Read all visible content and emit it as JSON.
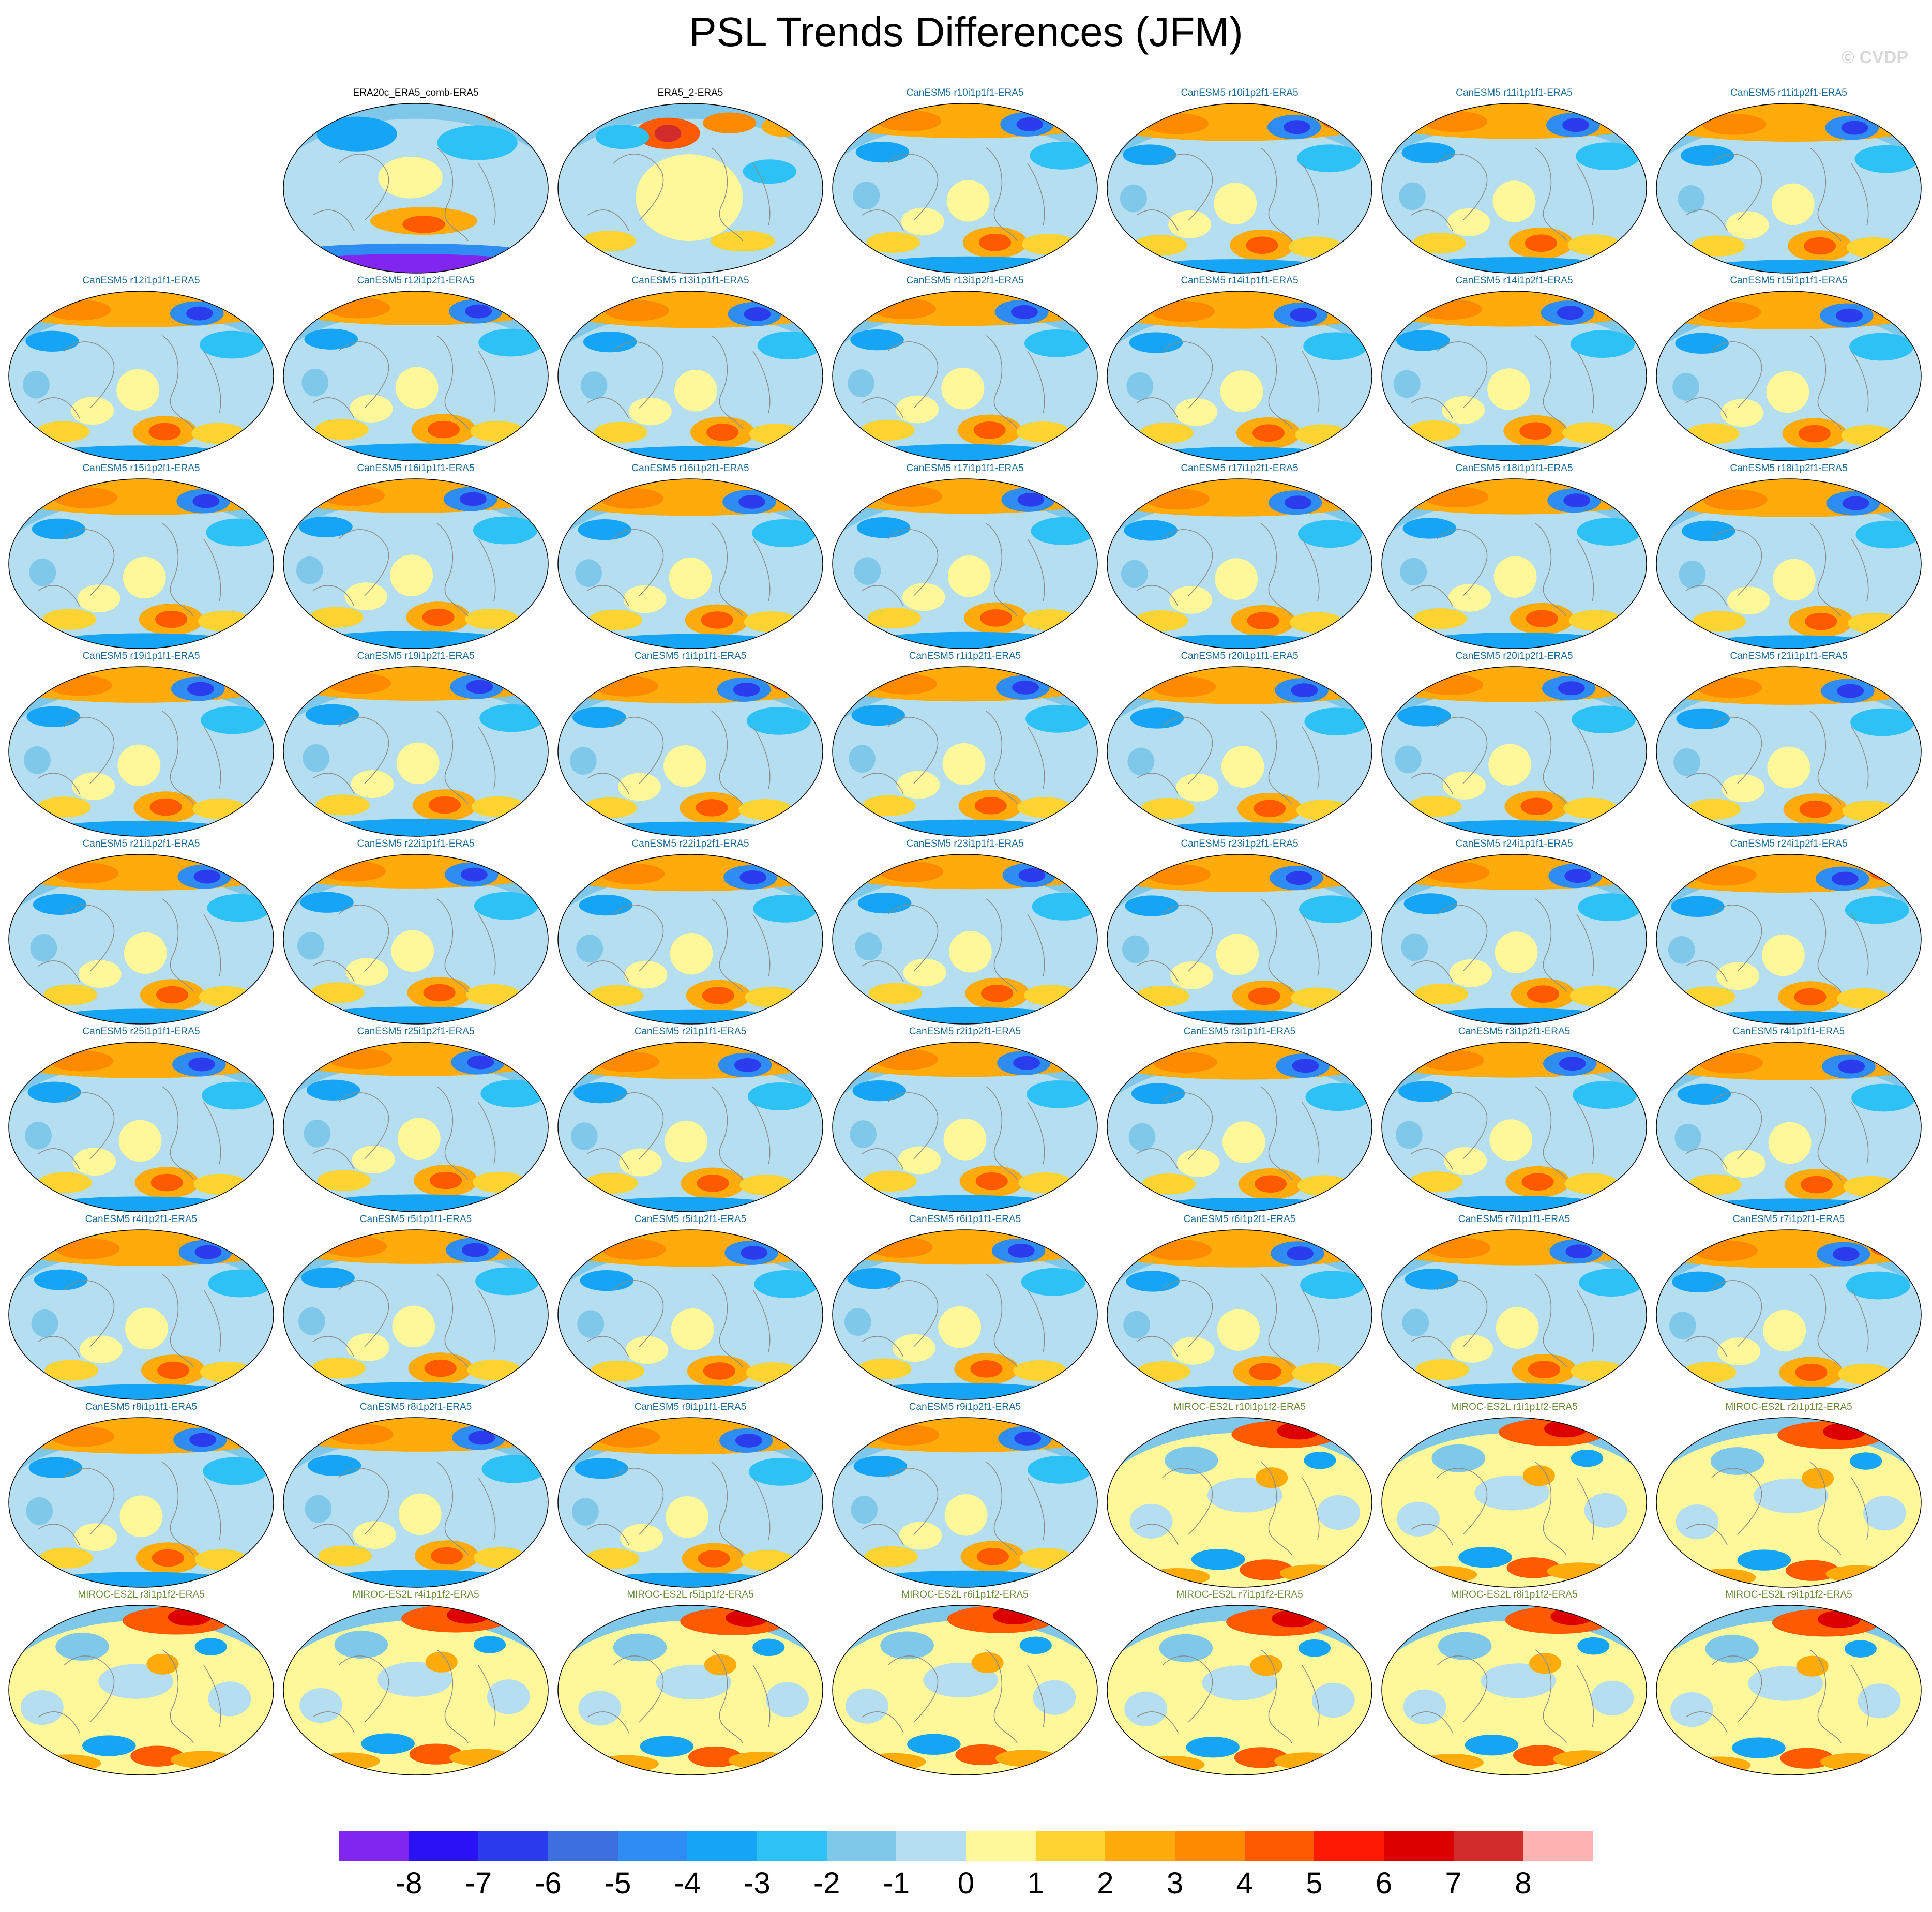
{
  "title": "PSL Trends Differences (JFM)",
  "watermark": "© CVDP",
  "colorbar": {
    "levels": [
      "-8",
      "-7",
      "-6",
      "-5",
      "-4",
      "-3",
      "-2",
      "-1",
      "0",
      "1",
      "2",
      "3",
      "4",
      "5",
      "6",
      "7",
      "8"
    ],
    "colors": [
      "#8026ef",
      "#2a12f5",
      "#2a3ceb",
      "#3d6fdf",
      "#2f8cf2",
      "#16a5f6",
      "#2ec1f5",
      "#80c8ea",
      "#b5def1",
      "#fef89a",
      "#fed432",
      "#feab0b",
      "#fe8a02",
      "#fe5a02",
      "#fe1902",
      "#dd0000",
      "#d12b2b",
      "#feb3b3"
    ]
  },
  "panels": [
    {
      "label": "ERA20c_ERA5_comb-ERA5",
      "color": "#000000",
      "style": "era20c"
    },
    {
      "label": "ERA5_2-ERA5",
      "color": "#000000",
      "style": "era5"
    },
    {
      "label": "CanESM5 r10i1p1f1-ERA5",
      "color": "#1b6b96",
      "style": "can"
    },
    {
      "label": "CanESM5 r10i1p2f1-ERA5",
      "color": "#1b6b96",
      "style": "can"
    },
    {
      "label": "CanESM5 r11i1p1f1-ERA5",
      "color": "#1b6b96",
      "style": "can"
    },
    {
      "label": "CanESM5 r11i1p2f1-ERA5",
      "color": "#1b6b96",
      "style": "can"
    },
    {
      "label": "CanESM5 r12i1p1f1-ERA5",
      "color": "#1b6b96",
      "style": "can"
    },
    {
      "label": "CanESM5 r12i1p2f1-ERA5",
      "color": "#1b6b96",
      "style": "can"
    },
    {
      "label": "CanESM5 r13i1p1f1-ERA5",
      "color": "#1b6b96",
      "style": "can"
    },
    {
      "label": "CanESM5 r13i1p2f1-ERA5",
      "color": "#1b6b96",
      "style": "can"
    },
    {
      "label": "CanESM5 r14i1p1f1-ERA5",
      "color": "#1b6b96",
      "style": "can"
    },
    {
      "label": "CanESM5 r14i1p2f1-ERA5",
      "color": "#1b6b96",
      "style": "can"
    },
    {
      "label": "CanESM5 r15i1p1f1-ERA5",
      "color": "#1b6b96",
      "style": "can"
    },
    {
      "label": "CanESM5 r15i1p2f1-ERA5",
      "color": "#1b6b96",
      "style": "can"
    },
    {
      "label": "CanESM5 r16i1p1f1-ERA5",
      "color": "#1b6b96",
      "style": "can"
    },
    {
      "label": "CanESM5 r16i1p2f1-ERA5",
      "color": "#1b6b96",
      "style": "can"
    },
    {
      "label": "CanESM5 r17i1p1f1-ERA5",
      "color": "#1b6b96",
      "style": "can"
    },
    {
      "label": "CanESM5 r17i1p2f1-ERA5",
      "color": "#1b6b96",
      "style": "can"
    },
    {
      "label": "CanESM5 r18i1p1f1-ERA5",
      "color": "#1b6b96",
      "style": "can"
    },
    {
      "label": "CanESM5 r18i1p2f1-ERA5",
      "color": "#1b6b96",
      "style": "can"
    },
    {
      "label": "CanESM5 r19i1p1f1-ERA5",
      "color": "#1b6b96",
      "style": "can"
    },
    {
      "label": "CanESM5 r19i1p2f1-ERA5",
      "color": "#1b6b96",
      "style": "can"
    },
    {
      "label": "CanESM5 r1i1p1f1-ERA5",
      "color": "#1b6b96",
      "style": "can"
    },
    {
      "label": "CanESM5 r1i1p2f1-ERA5",
      "color": "#1b6b96",
      "style": "can"
    },
    {
      "label": "CanESM5 r20i1p1f1-ERA5",
      "color": "#1b6b96",
      "style": "can"
    },
    {
      "label": "CanESM5 r20i1p2f1-ERA5",
      "color": "#1b6b96",
      "style": "can"
    },
    {
      "label": "CanESM5 r21i1p1f1-ERA5",
      "color": "#1b6b96",
      "style": "can"
    },
    {
      "label": "CanESM5 r21i1p2f1-ERA5",
      "color": "#1b6b96",
      "style": "can"
    },
    {
      "label": "CanESM5 r22i1p1f1-ERA5",
      "color": "#1b6b96",
      "style": "can"
    },
    {
      "label": "CanESM5 r22i1p2f1-ERA5",
      "color": "#1b6b96",
      "style": "can"
    },
    {
      "label": "CanESM5 r23i1p1f1-ERA5",
      "color": "#1b6b96",
      "style": "can"
    },
    {
      "label": "CanESM5 r23i1p2f1-ERA5",
      "color": "#1b6b96",
      "style": "can"
    },
    {
      "label": "CanESM5 r24i1p1f1-ERA5",
      "color": "#1b6b96",
      "style": "can"
    },
    {
      "label": "CanESM5 r24i1p2f1-ERA5",
      "color": "#1b6b96",
      "style": "can"
    },
    {
      "label": "CanESM5 r25i1p1f1-ERA5",
      "color": "#1b6b96",
      "style": "can"
    },
    {
      "label": "CanESM5 r25i1p2f1-ERA5",
      "color": "#1b6b96",
      "style": "can"
    },
    {
      "label": "CanESM5 r2i1p1f1-ERA5",
      "color": "#1b6b96",
      "style": "can"
    },
    {
      "label": "CanESM5 r2i1p2f1-ERA5",
      "color": "#1b6b96",
      "style": "can"
    },
    {
      "label": "CanESM5 r3i1p1f1-ERA5",
      "color": "#1b6b96",
      "style": "can"
    },
    {
      "label": "CanESM5 r3i1p2f1-ERA5",
      "color": "#1b6b96",
      "style": "can"
    },
    {
      "label": "CanESM5 r4i1p1f1-ERA5",
      "color": "#1b6b96",
      "style": "can"
    },
    {
      "label": "CanESM5 r4i1p2f1-ERA5",
      "color": "#1b6b96",
      "style": "can"
    },
    {
      "label": "CanESM5 r5i1p1f1-ERA5",
      "color": "#1b6b96",
      "style": "can"
    },
    {
      "label": "CanESM5 r5i1p2f1-ERA5",
      "color": "#1b6b96",
      "style": "can"
    },
    {
      "label": "CanESM5 r6i1p1f1-ERA5",
      "color": "#1b6b96",
      "style": "can"
    },
    {
      "label": "CanESM5 r6i1p2f1-ERA5",
      "color": "#1b6b96",
      "style": "can"
    },
    {
      "label": "CanESM5 r7i1p1f1-ERA5",
      "color": "#1b6b96",
      "style": "can"
    },
    {
      "label": "CanESM5 r7i1p2f1-ERA5",
      "color": "#1b6b96",
      "style": "can"
    },
    {
      "label": "CanESM5 r8i1p1f1-ERA5",
      "color": "#1b6b96",
      "style": "can"
    },
    {
      "label": "CanESM5 r8i1p2f1-ERA5",
      "color": "#1b6b96",
      "style": "can"
    },
    {
      "label": "CanESM5 r9i1p1f1-ERA5",
      "color": "#1b6b96",
      "style": "can"
    },
    {
      "label": "CanESM5 r9i1p2f1-ERA5",
      "color": "#1b6b96",
      "style": "can"
    },
    {
      "label": "MIROC-ES2L r10i1p1f2-ERA5",
      "color": "#6b8a3a",
      "style": "miroc"
    },
    {
      "label": "MIROC-ES2L r1i1p1f2-ERA5",
      "color": "#6b8a3a",
      "style": "miroc"
    },
    {
      "label": "MIROC-ES2L r2i1p1f2-ERA5",
      "color": "#6b8a3a",
      "style": "miroc"
    },
    {
      "label": "MIROC-ES2L r3i1p1f2-ERA5",
      "color": "#6b8a3a",
      "style": "miroc"
    },
    {
      "label": "MIROC-ES2L r4i1p1f2-ERA5",
      "color": "#6b8a3a",
      "style": "miroc"
    },
    {
      "label": "MIROC-ES2L r5i1p1f2-ERA5",
      "color": "#6b8a3a",
      "style": "miroc"
    },
    {
      "label": "MIROC-ES2L r6i1p1f2-ERA5",
      "color": "#6b8a3a",
      "style": "miroc"
    },
    {
      "label": "MIROC-ES2L r7i1p1f2-ERA5",
      "color": "#6b8a3a",
      "style": "miroc"
    },
    {
      "label": "MIROC-ES2L r8i1p1f2-ERA5",
      "color": "#6b8a3a",
      "style": "miroc"
    },
    {
      "label": "MIROC-ES2L r9i1p1f2-ERA5",
      "color": "#6b8a3a",
      "style": "miroc"
    }
  ]
}
